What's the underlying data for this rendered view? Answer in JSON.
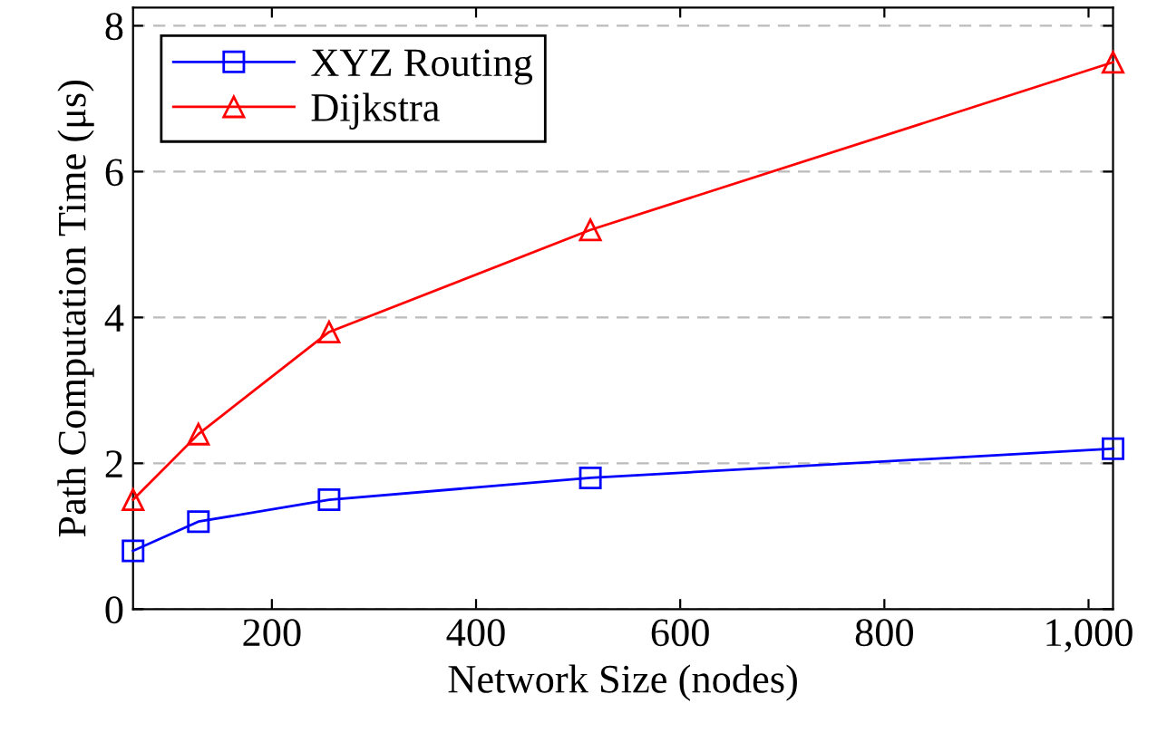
{
  "chart_data": {
    "type": "line",
    "xlabel": "Network Size (nodes)",
    "ylabel": "Path Computation Time (μs)",
    "xlim": [
      64,
      1024
    ],
    "ylim": [
      0,
      8.25
    ],
    "xticks": [
      200,
      400,
      600,
      800,
      {
        "value": 1000,
        "label": "1,000"
      }
    ],
    "yticks": [
      0,
      2,
      4,
      6,
      8
    ],
    "grid": "y",
    "legend": "top left",
    "x": [
      64,
      128,
      256,
      512,
      1024
    ],
    "series": [
      {
        "name": "XYZ Routing",
        "color": "#0000ff",
        "marker": "square",
        "values": [
          0.8,
          1.2,
          1.5,
          1.8,
          2.2
        ]
      },
      {
        "name": "Dijkstra",
        "color": "#ff0000",
        "marker": "triangle",
        "values": [
          1.5,
          2.4,
          3.8,
          5.2,
          7.5
        ]
      }
    ]
  }
}
